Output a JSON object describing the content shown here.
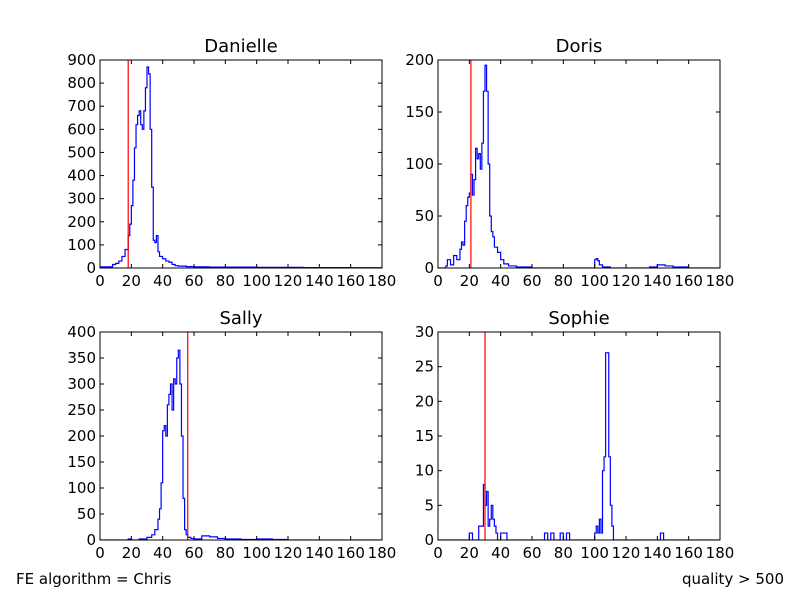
{
  "footer": {
    "left_text": "FE algorithm = Chris",
    "right_text": "quality > 500"
  },
  "colors": {
    "hist": "#0000ff",
    "marker": "#ff0000",
    "axes": "#000000"
  },
  "chart_data": [
    {
      "type": "histogram",
      "title": "Danielle",
      "xlim": [
        0,
        180
      ],
      "ylim": [
        0,
        900
      ],
      "xticks": [
        0,
        20,
        40,
        60,
        80,
        100,
        120,
        140,
        160,
        180
      ],
      "yticks": [
        0,
        100,
        200,
        300,
        400,
        500,
        600,
        700,
        800,
        900
      ],
      "vline": 18,
      "points": [
        [
          0,
          5
        ],
        [
          5,
          5
        ],
        [
          8,
          15
        ],
        [
          10,
          20
        ],
        [
          12,
          30
        ],
        [
          14,
          50
        ],
        [
          16,
          80
        ],
        [
          18,
          140
        ],
        [
          19,
          190
        ],
        [
          20,
          270
        ],
        [
          21,
          380
        ],
        [
          22,
          520
        ],
        [
          23,
          620
        ],
        [
          24,
          660
        ],
        [
          25,
          680
        ],
        [
          26,
          620
        ],
        [
          27,
          600
        ],
        [
          28,
          680
        ],
        [
          29,
          780
        ],
        [
          30,
          870
        ],
        [
          31,
          840
        ],
        [
          32,
          600
        ],
        [
          33,
          350
        ],
        [
          34,
          120
        ],
        [
          35,
          110
        ],
        [
          36,
          140
        ],
        [
          37,
          70
        ],
        [
          38,
          50
        ],
        [
          40,
          40
        ],
        [
          42,
          30
        ],
        [
          44,
          25
        ],
        [
          46,
          15
        ],
        [
          48,
          10
        ],
        [
          50,
          8
        ],
        [
          55,
          6
        ],
        [
          60,
          5
        ],
        [
          70,
          4
        ],
        [
          80,
          4
        ],
        [
          90,
          4
        ],
        [
          100,
          3
        ],
        [
          110,
          3
        ],
        [
          120,
          3
        ],
        [
          130,
          2
        ],
        [
          140,
          2
        ],
        [
          150,
          2
        ],
        [
          160,
          1
        ],
        [
          170,
          1
        ],
        [
          180,
          1
        ]
      ]
    },
    {
      "type": "histogram",
      "title": "Doris",
      "xlim": [
        0,
        180
      ],
      "ylim": [
        0,
        200
      ],
      "xticks": [
        0,
        20,
        40,
        60,
        80,
        100,
        120,
        140,
        160,
        180
      ],
      "yticks": [
        0,
        50,
        100,
        150,
        200
      ],
      "vline": 21,
      "points": [
        [
          0,
          0
        ],
        [
          5,
          2
        ],
        [
          6,
          8
        ],
        [
          8,
          3
        ],
        [
          10,
          12
        ],
        [
          12,
          8
        ],
        [
          14,
          18
        ],
        [
          15,
          25
        ],
        [
          16,
          22
        ],
        [
          17,
          45
        ],
        [
          18,
          60
        ],
        [
          19,
          68
        ],
        [
          20,
          72
        ],
        [
          21,
          90
        ],
        [
          22,
          70
        ],
        [
          23,
          85
        ],
        [
          24,
          115
        ],
        [
          25,
          105
        ],
        [
          26,
          110
        ],
        [
          27,
          95
        ],
        [
          28,
          120
        ],
        [
          29,
          170
        ],
        [
          30,
          195
        ],
        [
          31,
          170
        ],
        [
          32,
          100
        ],
        [
          33,
          50
        ],
        [
          34,
          35
        ],
        [
          35,
          30
        ],
        [
          36,
          20
        ],
        [
          38,
          15
        ],
        [
          40,
          8
        ],
        [
          42,
          4
        ],
        [
          45,
          2
        ],
        [
          50,
          1
        ],
        [
          60,
          0
        ],
        [
          95,
          0
        ],
        [
          100,
          8
        ],
        [
          101,
          9
        ],
        [
          102,
          7
        ],
        [
          103,
          3
        ],
        [
          105,
          1
        ],
        [
          110,
          0
        ],
        [
          135,
          1
        ],
        [
          140,
          3
        ],
        [
          145,
          2
        ],
        [
          150,
          1
        ],
        [
          160,
          0
        ],
        [
          180,
          0
        ]
      ]
    },
    {
      "type": "histogram",
      "title": "Sally",
      "xlim": [
        0,
        180
      ],
      "ylim": [
        0,
        400
      ],
      "xticks": [
        0,
        20,
        40,
        60,
        80,
        100,
        120,
        140,
        160,
        180
      ],
      "yticks": [
        0,
        50,
        100,
        150,
        200,
        250,
        300,
        350,
        400
      ],
      "vline": 56,
      "points": [
        [
          0,
          0
        ],
        [
          15,
          0
        ],
        [
          18,
          2
        ],
        [
          20,
          0
        ],
        [
          25,
          2
        ],
        [
          30,
          5
        ],
        [
          33,
          10
        ],
        [
          35,
          20
        ],
        [
          37,
          40
        ],
        [
          38,
          60
        ],
        [
          39,
          110
        ],
        [
          40,
          210
        ],
        [
          41,
          220
        ],
        [
          42,
          200
        ],
        [
          43,
          260
        ],
        [
          44,
          280
        ],
        [
          45,
          300
        ],
        [
          46,
          250
        ],
        [
          47,
          310
        ],
        [
          48,
          300
        ],
        [
          49,
          350
        ],
        [
          50,
          365
        ],
        [
          51,
          300
        ],
        [
          52,
          200
        ],
        [
          53,
          80
        ],
        [
          54,
          20
        ],
        [
          55,
          10
        ],
        [
          56,
          5
        ],
        [
          58,
          3
        ],
        [
          60,
          2
        ],
        [
          65,
          8
        ],
        [
          70,
          6
        ],
        [
          75,
          3
        ],
        [
          80,
          2
        ],
        [
          90,
          1
        ],
        [
          100,
          2
        ],
        [
          110,
          1
        ],
        [
          120,
          0
        ],
        [
          180,
          0
        ]
      ]
    },
    {
      "type": "histogram",
      "title": "Sophie",
      "xlim": [
        0,
        180
      ],
      "ylim": [
        0,
        30
      ],
      "xticks": [
        0,
        20,
        40,
        60,
        80,
        100,
        120,
        140,
        160,
        180
      ],
      "yticks": [
        0,
        5,
        10,
        15,
        20,
        25,
        30
      ],
      "vline": 30,
      "points": [
        [
          0,
          0
        ],
        [
          20,
          1
        ],
        [
          22,
          0
        ],
        [
          26,
          2
        ],
        [
          28,
          2
        ],
        [
          29,
          8
        ],
        [
          30,
          5
        ],
        [
          31,
          7
        ],
        [
          32,
          2
        ],
        [
          33,
          3
        ],
        [
          34,
          5
        ],
        [
          35,
          3
        ],
        [
          36,
          2
        ],
        [
          37,
          1
        ],
        [
          38,
          0
        ],
        [
          40,
          1
        ],
        [
          42,
          1
        ],
        [
          44,
          0
        ],
        [
          68,
          1
        ],
        [
          70,
          0
        ],
        [
          72,
          1
        ],
        [
          74,
          0
        ],
        [
          78,
          1
        ],
        [
          80,
          0
        ],
        [
          82,
          1
        ],
        [
          84,
          0
        ],
        [
          100,
          1
        ],
        [
          101,
          2
        ],
        [
          102,
          1
        ],
        [
          103,
          3
        ],
        [
          104,
          1
        ],
        [
          105,
          10
        ],
        [
          106,
          12
        ],
        [
          107,
          27
        ],
        [
          108,
          27
        ],
        [
          109,
          12
        ],
        [
          110,
          5
        ],
        [
          111,
          2
        ],
        [
          112,
          0
        ],
        [
          142,
          1
        ],
        [
          144,
          0
        ],
        [
          180,
          0
        ]
      ]
    }
  ]
}
